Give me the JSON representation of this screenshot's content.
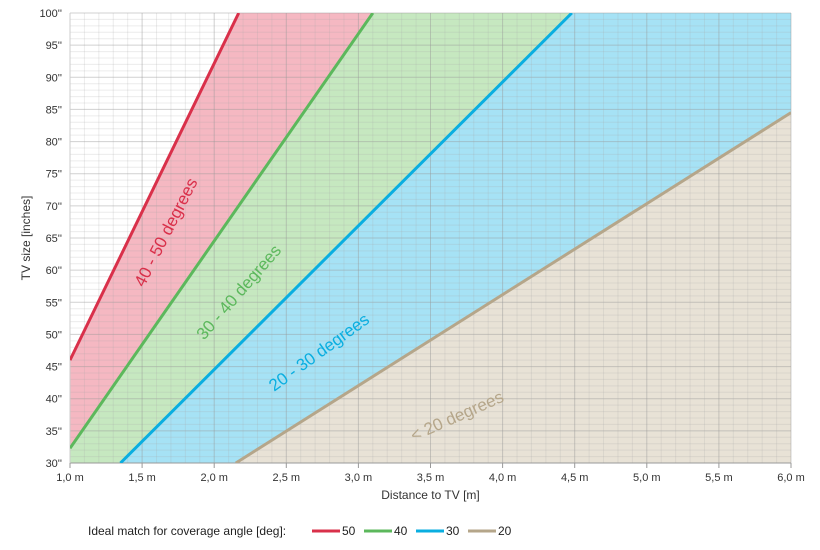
{
  "chart_data": {
    "type": "line",
    "title": "",
    "xlabel": "Distance to TV [m]",
    "ylabel": "TV size [inches]",
    "xlim": [
      1.0,
      6.0
    ],
    "ylim": [
      30,
      100
    ],
    "grid": true,
    "x_ticks": [
      1.0,
      1.5,
      2.0,
      2.5,
      3.0,
      3.5,
      4.0,
      4.5,
      5.0,
      5.5,
      6.0
    ],
    "x_tick_labels": [
      "1,0 m",
      "1,5 m",
      "2,0 m",
      "2,5 m",
      "3,0 m",
      "3,5 m",
      "4,0 m",
      "4,5 m",
      "5,0 m",
      "5,5 m",
      "6,0 m"
    ],
    "y_ticks": [
      30,
      35,
      40,
      45,
      50,
      55,
      60,
      65,
      70,
      75,
      80,
      85,
      90,
      95,
      100
    ],
    "y_tick_labels": [
      "30''",
      "35''",
      "40''",
      "45''",
      "50''",
      "55''",
      "60''",
      "65''",
      "70''",
      "75''",
      "80''",
      "85''",
      "90''",
      "95''",
      "100''"
    ],
    "legend": {
      "title": "Ideal match for coverage angle [deg]:",
      "position": "bottom"
    },
    "series": [
      {
        "name": "50",
        "color": "#d9304a",
        "fill": "#f5b8c2",
        "x": [
          1.0,
          2.17
        ],
        "y": [
          46.0,
          100.0
        ]
      },
      {
        "name": "40",
        "color": "#5cb85c",
        "fill": "#c6e8c0",
        "x": [
          1.0,
          3.1
        ],
        "y": [
          32.3,
          100.0
        ]
      },
      {
        "name": "30",
        "color": "#0aaee0",
        "fill": "#a6e2f5",
        "x": [
          1.35,
          4.48
        ],
        "y": [
          30.0,
          100.0
        ]
      },
      {
        "name": "20",
        "color": "#b5a68a",
        "fill": "#e8e2d6",
        "x": [
          2.15,
          6.0
        ],
        "y": [
          30.0,
          84.5
        ]
      }
    ],
    "annotations": [
      {
        "text": "40 - 50 degrees",
        "color": "#d9304a",
        "x": 1.7,
        "y": 65.5
      },
      {
        "text": "30 - 40 degrees",
        "color": "#5cb85c",
        "x": 2.2,
        "y": 56.0
      },
      {
        "text": "20 - 30 degrees",
        "color": "#0aaee0",
        "x": 2.75,
        "y": 46.5
      },
      {
        "text": "< 20 degrees",
        "color": "#b5a68a",
        "x": 3.7,
        "y": 36.5
      }
    ]
  }
}
